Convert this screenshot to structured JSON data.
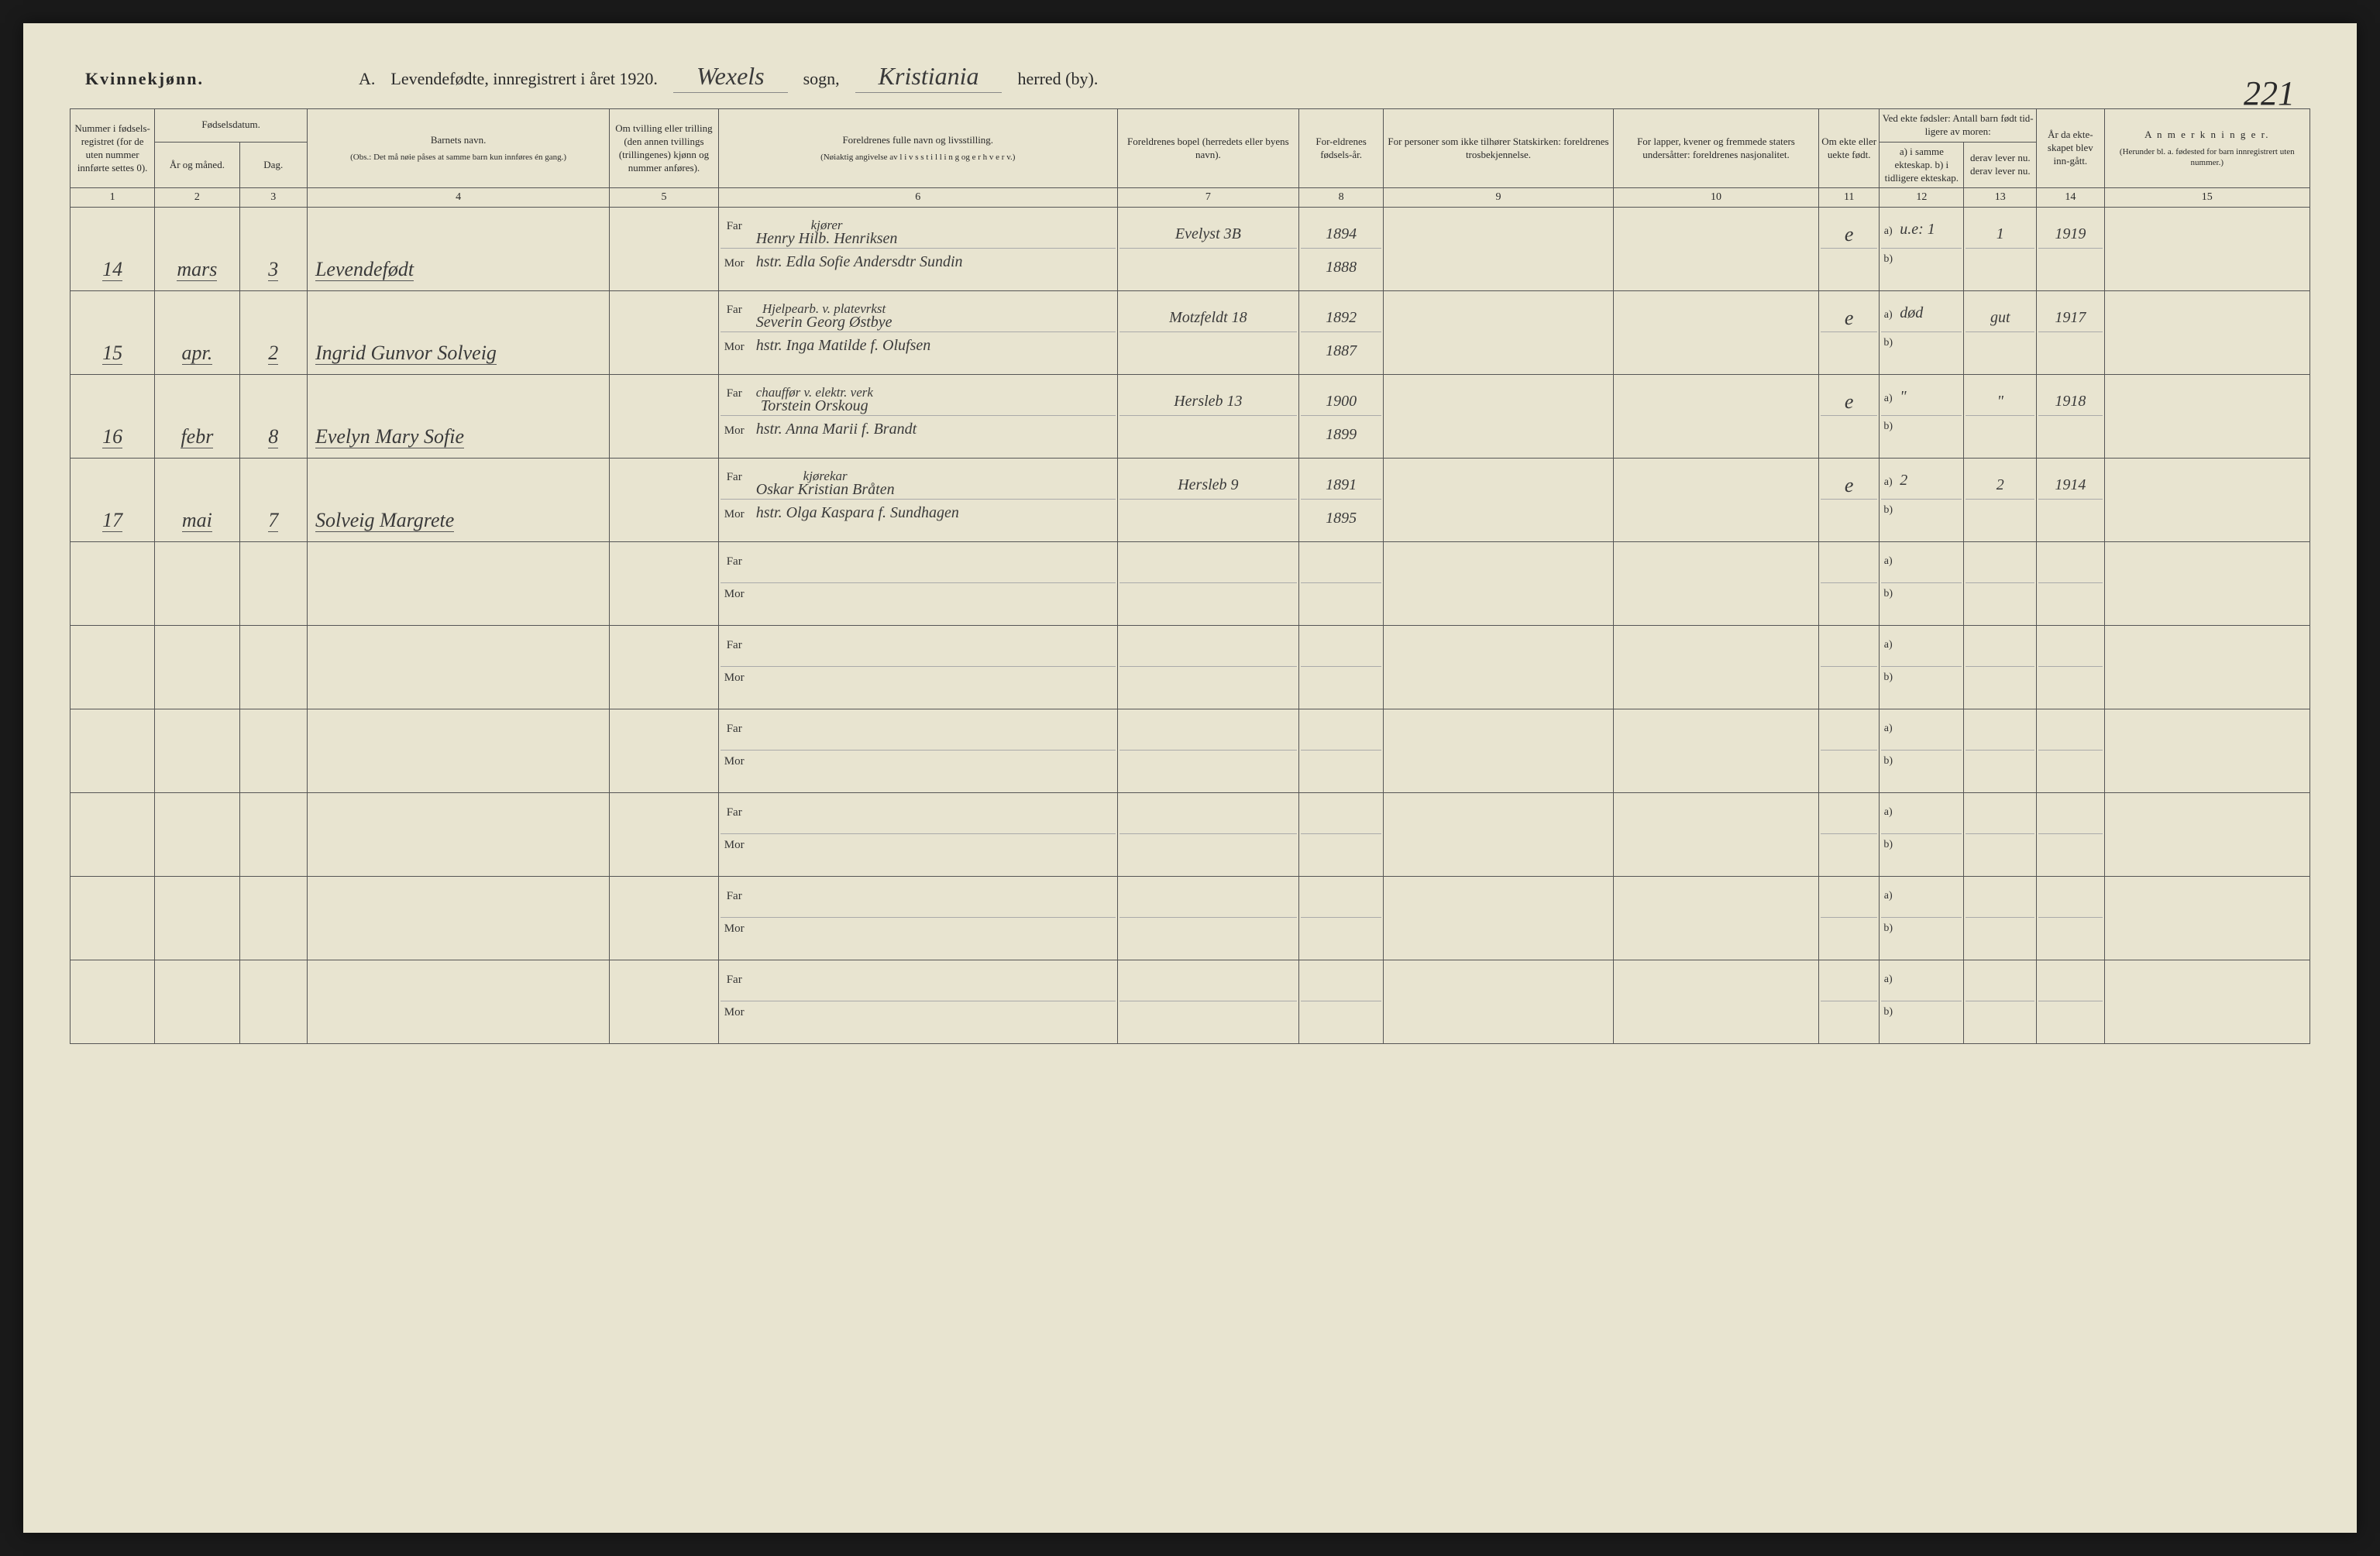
{
  "header": {
    "gender_label": "Kvinnekjønn.",
    "title_prefix": "A.",
    "title_main": "Levendefødte, innregistrert i året 1920.",
    "sogn_value": "Wexels",
    "sogn_label": "sogn,",
    "herred_value": "Kristiania",
    "herred_label": "herred (by).",
    "page_number": "221"
  },
  "columns": {
    "c1": "Nummer i fødsels-registret (for de uten nummer innførte settes 0).",
    "c23_group": "Fødselsdatum.",
    "c2": "År og måned.",
    "c3": "Dag.",
    "c4_title": "Barnets navn.",
    "c4_note": "(Obs.: Det må nøie påses at samme barn kun innføres én gang.)",
    "c5": "Om tvilling eller trilling (den annen tvillings (trillingenes) kjønn og nummer anføres).",
    "c6_title": "Foreldrenes fulle navn og livsstilling.",
    "c6_note": "(Nøiaktig angivelse av l i v s s t i l l i n g og e r h v e r v.)",
    "c7": "Foreldrenes bopel (herredets eller byens navn).",
    "c8": "For-eldrenes fødsels-år.",
    "c9": "For personer som ikke tilhører Statskirken: foreldrenes trosbekjennelse.",
    "c10": "For lapper, kvener og fremmede staters undersåtter: foreldrenes nasjonalitet.",
    "c11": "Om ekte eller uekte født.",
    "c1213_group": "Ved ekte fødsler: Antall barn født tid-ligere av moren:",
    "c12": "a) i samme ekteskap. b) i tidligere ekteskap.",
    "c13": "derav lever nu. derav lever nu.",
    "c14": "År da ekte-skapet blev inn-gått.",
    "c15_title": "A n m e r k n i n g e r.",
    "c15_note": "(Herunder bl. a. fødested for barn innregistrert uten nummer.)"
  },
  "colnums": [
    "1",
    "2",
    "3",
    "4",
    "5",
    "6",
    "7",
    "8",
    "9",
    "10",
    "11",
    "12",
    "13",
    "14",
    "15"
  ],
  "far_label": "Far",
  "mor_label": "Mor",
  "a_label": "a)",
  "b_label": "b)",
  "rows": [
    {
      "num": "14",
      "month": "mars",
      "day": "3",
      "name": "Levendefødt",
      "far_occ": "kjører",
      "far_name": "Henry Hilb. Henriksen",
      "mor_name": "hstr. Edla Sofie Andersdtr Sundin",
      "address": "Evelyst 3B",
      "far_year": "1894",
      "mor_year": "1888",
      "ekte": "e",
      "a_val_pre": "u.e:",
      "a_val": "1",
      "a_lever": "1",
      "year_marriage": "1919"
    },
    {
      "num": "15",
      "month": "apr.",
      "day": "2",
      "name": "Ingrid Gunvor Solveig",
      "far_occ": "Hjelpearb. v. platevrkst",
      "far_name": "Severin Georg Østbye",
      "mor_name": "hstr. Inga Matilde f. Olufsen",
      "address": "Motzfeldt 18",
      "far_year": "1892",
      "mor_year": "1887",
      "ekte": "e",
      "a_val_pre": "død",
      "a_val": "",
      "a_lever": "gut",
      "year_marriage": "1917"
    },
    {
      "num": "16",
      "month": "febr",
      "day": "8",
      "name": "Evelyn Mary Sofie",
      "far_occ": "chauffør v. elektr. verk",
      "far_name": "Torstein Orskoug",
      "mor_name": "hstr. Anna Marii f. Brandt",
      "address": "Hersleb 13",
      "far_year": "1900",
      "mor_year": "1899",
      "ekte": "e",
      "a_val_pre": "",
      "a_val": "\"",
      "a_lever": "\"",
      "year_marriage": "1918"
    },
    {
      "num": "17",
      "month": "mai",
      "day": "7",
      "name": "Solveig Margrete",
      "far_occ": "kjørekar",
      "far_name": "Oskar Kristian Bråten",
      "mor_name": "hstr. Olga Kaspara f. Sundhagen",
      "address": "Hersleb 9",
      "far_year": "1891",
      "mor_year": "1895",
      "ekte": "e",
      "a_val_pre": "",
      "a_val": "2",
      "a_lever": "2",
      "year_marriage": "1914"
    }
  ],
  "empty_rows": 6,
  "colors": {
    "page_bg": "#e8e4d0",
    "outer_bg": "#1a1a1a",
    "ink": "#2a2a2a",
    "handwriting": "#3a3a3a",
    "rule": "#555555"
  },
  "typography": {
    "header_fontsize": 22,
    "handwritten_fontsize": 32,
    "th_fontsize": 13,
    "hw_cell_fontsize": 26
  }
}
